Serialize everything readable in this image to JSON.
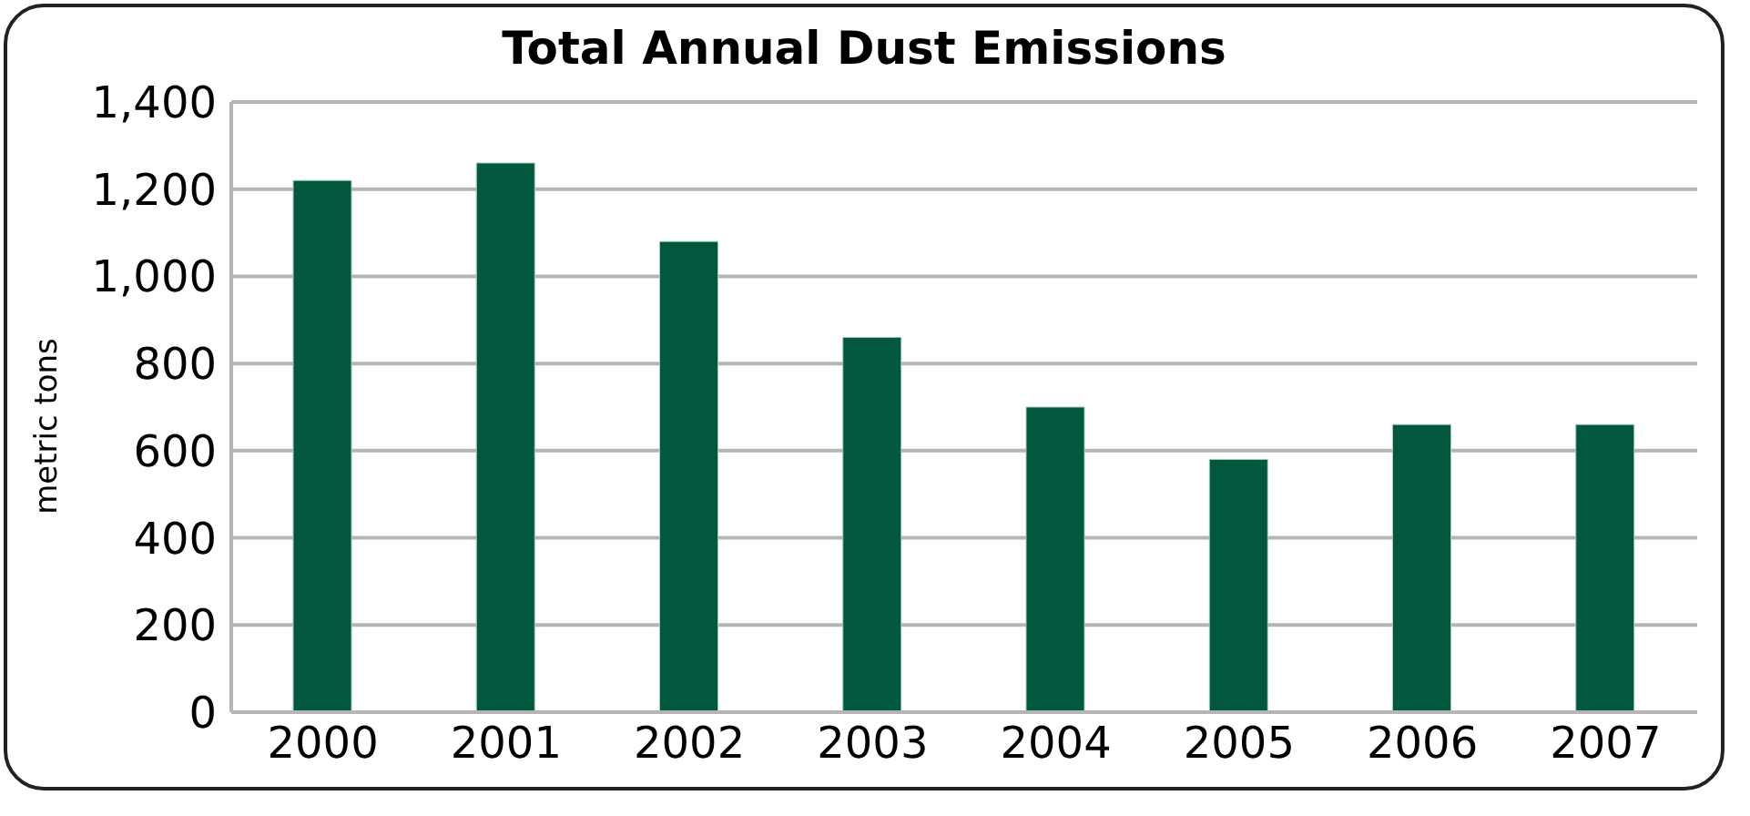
{
  "chart_data": {
    "type": "bar",
    "title": "Total Annual Dust Emissions",
    "ylabel": "metric tons",
    "categories": [
      "2000",
      "2001",
      "2002",
      "2003",
      "2004",
      "2005",
      "2006",
      "2007"
    ],
    "values": [
      1220,
      1260,
      1080,
      860,
      700,
      580,
      660,
      660
    ],
    "color": "#02573f",
    "ylim": [
      0,
      1400
    ],
    "yticks": [
      0,
      200,
      400,
      600,
      800,
      {
        "value": 1000,
        "label": "1,000"
      },
      {
        "value": 1200,
        "label": "1,200"
      },
      {
        "value": 1400,
        "label": "1,400"
      }
    ],
    "grid": "y"
  }
}
